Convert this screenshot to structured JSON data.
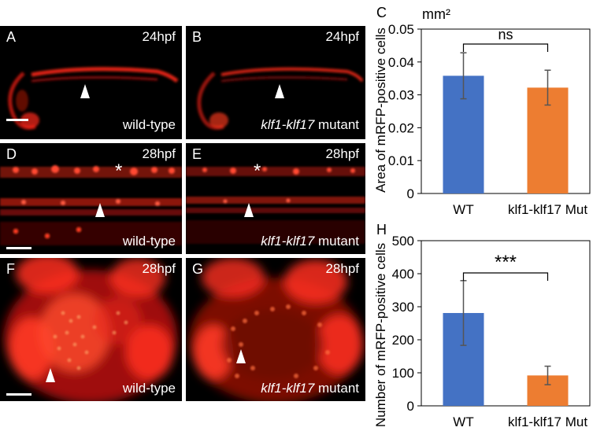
{
  "panels": [
    {
      "id": "A",
      "letter": "A",
      "time": "24hpf",
      "genotype_italic": "",
      "genotype_text": "wild-type"
    },
    {
      "id": "B",
      "letter": "B",
      "time": "24hpf",
      "genotype_italic": "klf1-klf17",
      "genotype_text": " mutant"
    },
    {
      "id": "D",
      "letter": "D",
      "time": "28hpf",
      "genotype_italic": "",
      "genotype_text": "wild-type"
    },
    {
      "id": "E",
      "letter": "E",
      "time": "28hpf",
      "genotype_italic": "klf1-klf17",
      "genotype_text": " mutant"
    },
    {
      "id": "F",
      "letter": "F",
      "time": "28hpf",
      "genotype_italic": "",
      "genotype_text": "wild-type"
    },
    {
      "id": "G",
      "letter": "G",
      "time": "28hpf",
      "genotype_italic": "klf1-klf17",
      "genotype_text": " mutant"
    }
  ],
  "colors": {
    "wt": "#4472c4",
    "mut": "#ed7d31",
    "fluor": "#ff2a1a"
  },
  "chart_data": [
    {
      "type": "bar",
      "panel_label": "C",
      "unit_label": "mm²",
      "ylabel": "Area of mRFP-positive cells",
      "categories": [
        "WT",
        "klf1-klf17 Mut"
      ],
      "values": [
        0.0358,
        0.0322
      ],
      "errors": [
        0.007,
        0.0053
      ],
      "ylim": [
        0,
        0.05
      ],
      "yticks": [
        "0",
        "0.01",
        "0.02",
        "0.03",
        "0.04",
        "0.05"
      ],
      "significance": "ns"
    },
    {
      "type": "bar",
      "panel_label": "H",
      "unit_label": "",
      "ylabel": "Number of mRFP-positive cells",
      "categories": [
        "WT",
        "klf1-klf17 Mut"
      ],
      "values": [
        281,
        92
      ],
      "errors": [
        98,
        28
      ],
      "ylim": [
        0,
        500
      ],
      "yticks": [
        "0",
        "100",
        "200",
        "300",
        "400",
        "500"
      ],
      "significance": "***"
    }
  ]
}
